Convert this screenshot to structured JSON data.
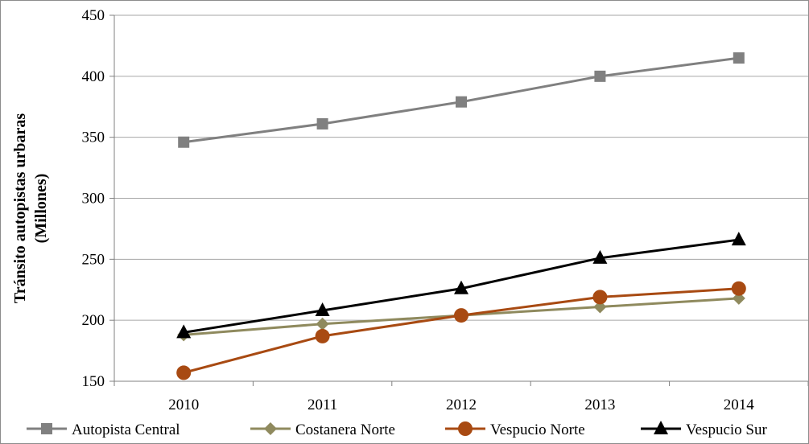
{
  "chart_data": {
    "type": "line",
    "title": "",
    "xlabel": "",
    "ylabel_line1": "Tránsito  autopistas urbaras",
    "ylabel_line2": "(Millones)",
    "categories": [
      "2010",
      "2011",
      "2012",
      "2013",
      "2014"
    ],
    "ylim": [
      150,
      450
    ],
    "yticks": [
      150,
      200,
      250,
      300,
      350,
      400,
      450
    ],
    "grid": true,
    "legend_position": "bottom",
    "series": [
      {
        "name": "Autopista Central",
        "values": [
          346,
          361,
          379,
          400,
          415
        ],
        "color": "#808080",
        "marker": "square"
      },
      {
        "name": "Costanera Norte",
        "values": [
          188,
          197,
          204,
          211,
          218
        ],
        "color": "#8f8a5e",
        "marker": "diamond"
      },
      {
        "name": "Vespucio Norte",
        "values": [
          157,
          187,
          204,
          219,
          226
        ],
        "color": "#a84a12",
        "marker": "circle"
      },
      {
        "name": "Vespucio Sur",
        "values": [
          190,
          208,
          226,
          251,
          266
        ],
        "color": "#000000",
        "marker": "triangle"
      }
    ]
  }
}
